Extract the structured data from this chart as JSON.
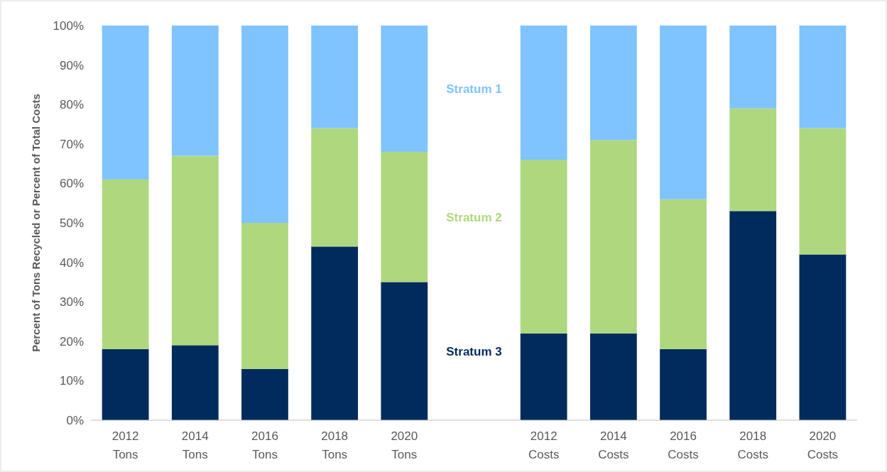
{
  "chart_data": {
    "type": "bar",
    "stacked": true,
    "ylabel": "Percent of Tons Recycled or Percent of Total Costs",
    "categories": [
      "2012 Tons",
      "2014 Tons",
      "2016 Tons",
      "2018 Tons",
      "2020 Tons",
      null,
      "2012 Costs",
      "2014 Costs",
      "2016 Costs",
      "2018 Costs",
      "2020 Costs"
    ],
    "series": [
      {
        "name": "Stratum 3",
        "color": "#002b5c",
        "values": [
          18,
          19,
          13,
          44,
          35,
          null,
          22,
          22,
          18,
          53,
          42
        ]
      },
      {
        "name": "Stratum 2",
        "color": "#aed87e",
        "values": [
          43,
          48,
          37,
          30,
          33,
          null,
          44,
          49,
          38,
          26,
          32
        ]
      },
      {
        "name": "Stratum 1",
        "color": "#7fc3ff",
        "values": [
          39,
          33,
          50,
          26,
          32,
          null,
          34,
          29,
          44,
          21,
          26
        ]
      }
    ],
    "ylim": [
      0,
      100
    ],
    "yticks": [
      {
        "value": 0,
        "label": "0%"
      },
      {
        "value": 10,
        "label": "10%"
      },
      {
        "value": 20,
        "label": "20%"
      },
      {
        "value": 30,
        "label": "30%"
      },
      {
        "value": 40,
        "label": "40%"
      },
      {
        "value": 50,
        "label": "50%"
      },
      {
        "value": 60,
        "label": "60%"
      },
      {
        "value": 70,
        "label": "70%"
      },
      {
        "value": 80,
        "label": "80%"
      },
      {
        "value": 90,
        "label": "90%"
      },
      {
        "value": 100,
        "label": "100%"
      }
    ],
    "grid": false,
    "legend": false
  }
}
